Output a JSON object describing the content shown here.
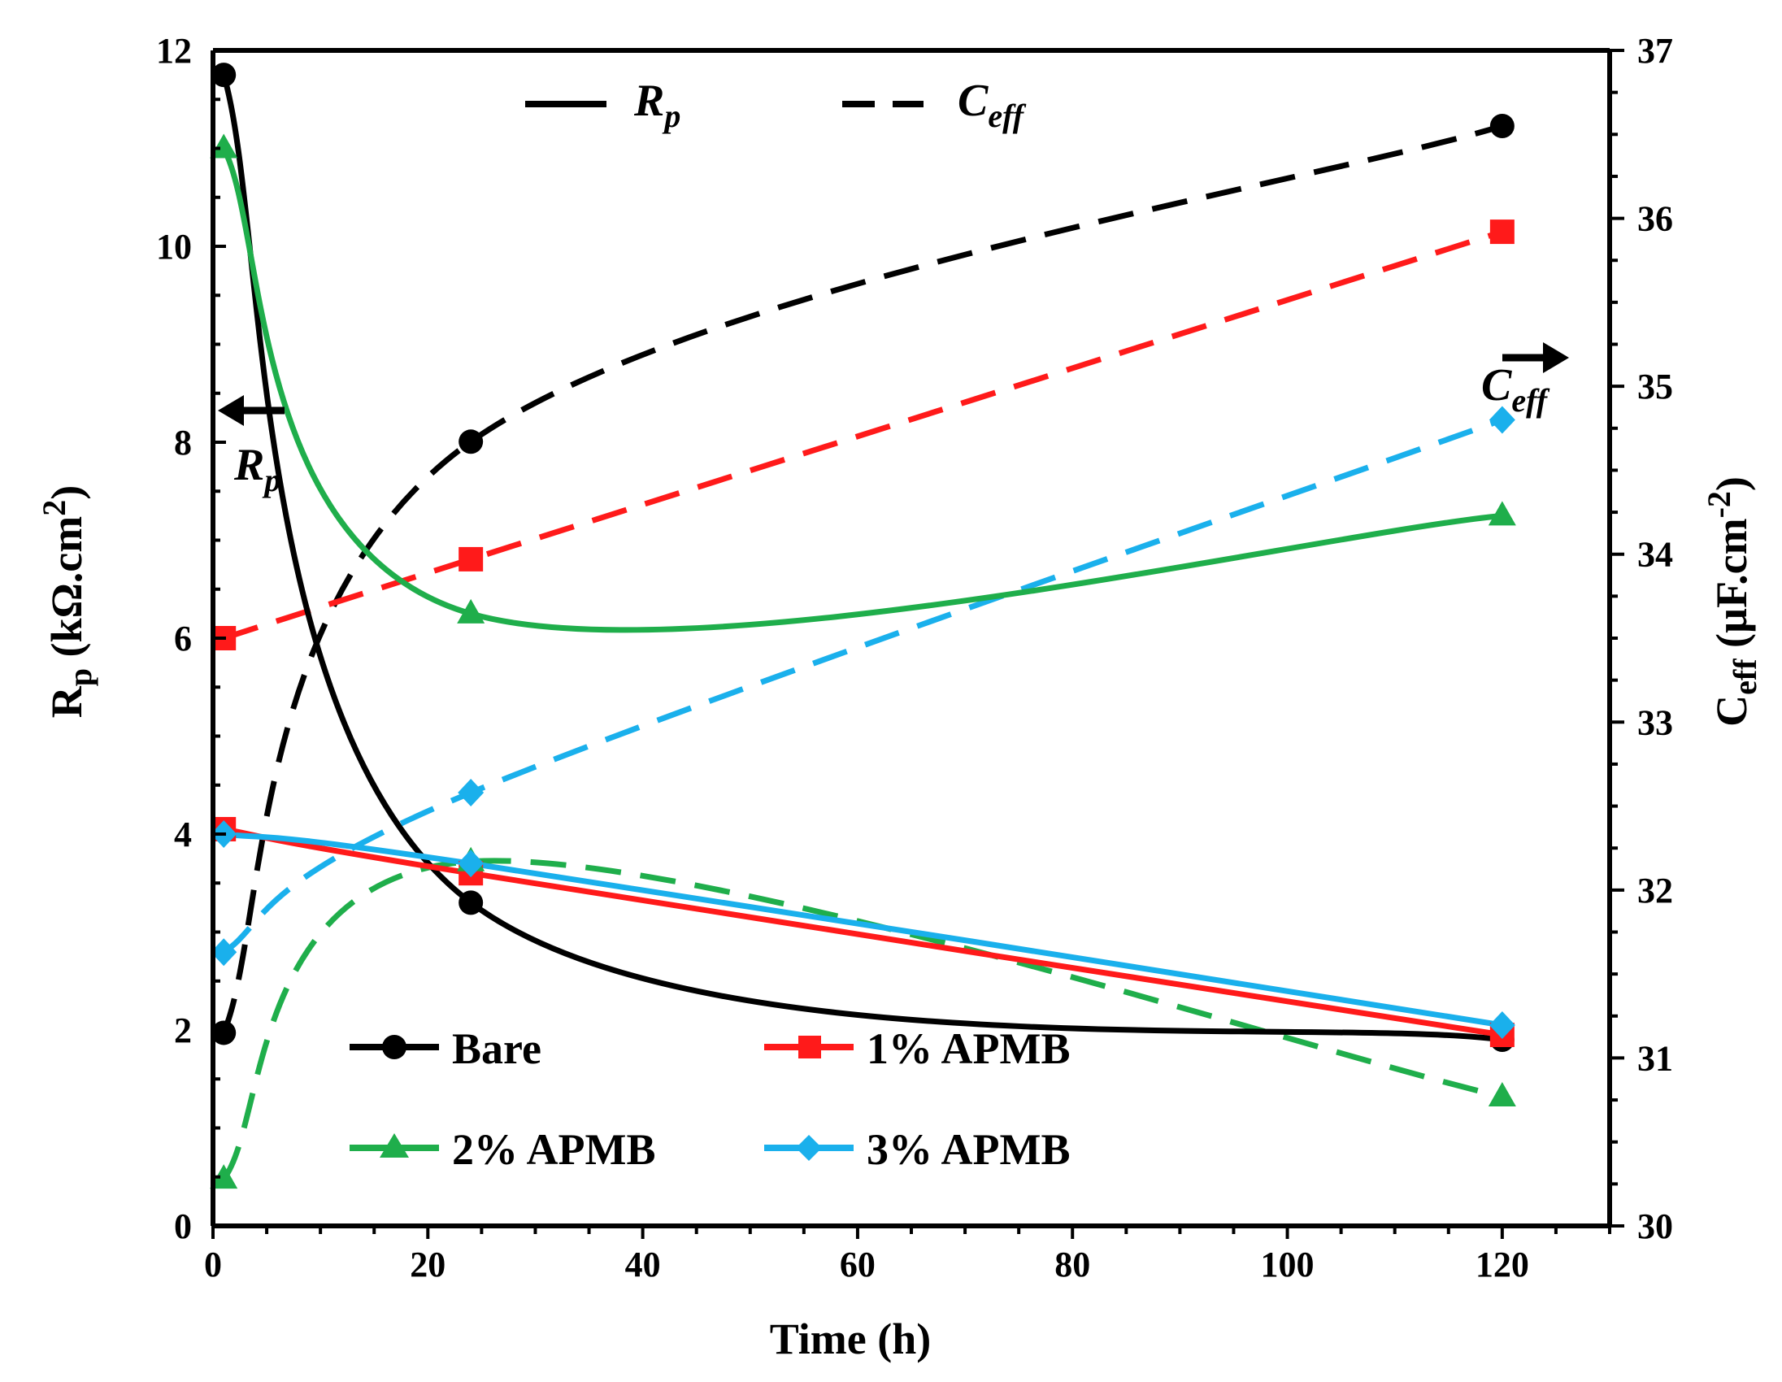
{
  "chart_data": {
    "type": "line",
    "xlabel": "Time (h)",
    "ylabel_left": {
      "main": "R",
      "sub": "p",
      "unit": " (kΩ.cm",
      "sup": "2",
      "close": ")"
    },
    "ylabel_right": {
      "main": "C",
      "sub": "eff",
      "unit": " (µF.cm",
      "sup": "-2",
      "close": ")"
    },
    "xlim": [
      0,
      130
    ],
    "ylim_left": [
      0,
      12
    ],
    "ylim_right": [
      30,
      37
    ],
    "x_ticks": [
      "0",
      "20",
      "40",
      "60",
      "80",
      "100",
      "120"
    ],
    "y_left_ticks": [
      "0",
      "2",
      "4",
      "6",
      "8",
      "10",
      "12"
    ],
    "y_right_ticks": [
      "30",
      "31",
      "32",
      "33",
      "34",
      "35",
      "36",
      "37"
    ],
    "x": [
      1,
      24,
      120
    ],
    "series": [
      {
        "name": "Bare",
        "color": "#000000",
        "marker": "circle",
        "rp": [
          11.75,
          3.3,
          1.9
        ],
        "ceff": [
          31.15,
          34.67,
          36.55
        ]
      },
      {
        "name": "1% APMB",
        "color": "#ff1a1a",
        "marker": "square",
        "rp": [
          4.05,
          3.6,
          1.95
        ],
        "ceff": [
          33.5,
          33.97,
          35.92
        ]
      },
      {
        "name": "2% APMB",
        "color": "#1fae4b",
        "marker": "triangle",
        "rp": [
          11.0,
          6.25,
          7.25
        ],
        "ceff": [
          30.28,
          32.17,
          30.77
        ]
      },
      {
        "name": "3% APMB",
        "color": "#1ab0ec",
        "marker": "diamond",
        "rp": [
          4.0,
          3.7,
          2.05
        ],
        "ceff": [
          31.63,
          32.58,
          34.8
        ]
      }
    ],
    "line_style_legend": [
      {
        "label_main": "R",
        "label_sub": "p",
        "style": "solid"
      },
      {
        "label_main": "C",
        "label_sub": "eff",
        "style": "dashed"
      }
    ],
    "annotations": [
      {
        "main": "R",
        "sub": "p",
        "arrow": "left"
      },
      {
        "main": "C",
        "sub": "eff",
        "arrow": "right"
      }
    ]
  }
}
